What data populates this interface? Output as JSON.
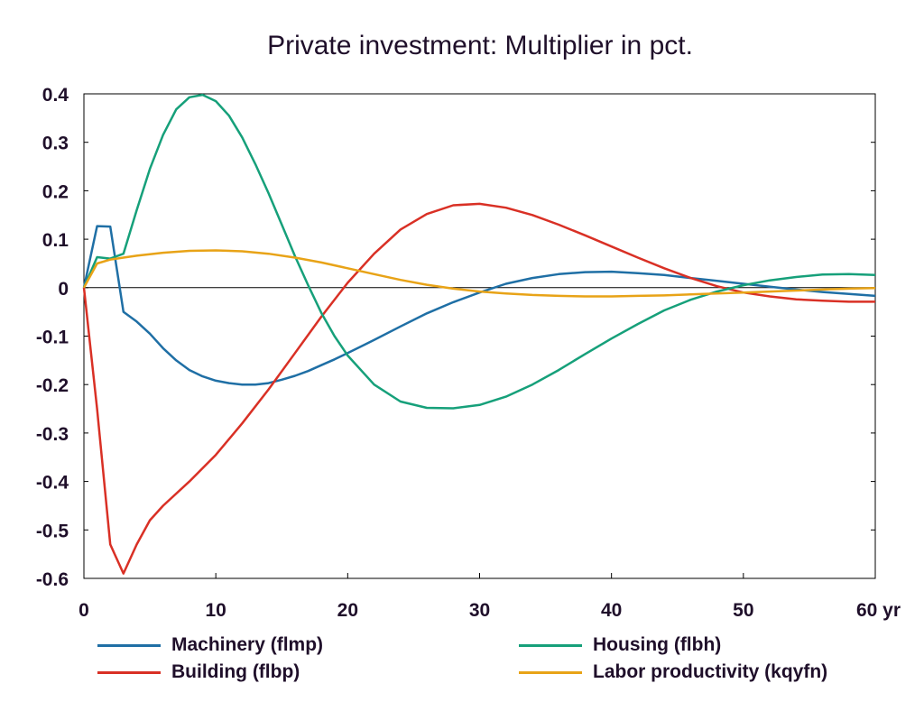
{
  "chart_data": {
    "type": "line",
    "title": "Private investment: Multiplier in pct.",
    "xlabel": "",
    "ylabel": "",
    "xlim": [
      0,
      60
    ],
    "ylim": [
      -0.6,
      0.4
    ],
    "x_ticks": [
      "0",
      "10",
      "20",
      "30",
      "40",
      "50",
      "60 yr"
    ],
    "x_tick_values": [
      0,
      10,
      20,
      30,
      40,
      50,
      60
    ],
    "y_ticks": [
      "0.4",
      "0.3",
      "0.2",
      "0.1",
      "0",
      "-0.1",
      "-0.2",
      "-0.3",
      "-0.4",
      "-0.5",
      "-0.6"
    ],
    "y_tick_values": [
      0.4,
      0.3,
      0.2,
      0.1,
      0,
      -0.1,
      -0.2,
      -0.3,
      -0.4,
      -0.5,
      -0.6
    ],
    "zero_line": true,
    "grid": false,
    "legend_position": "bottom",
    "series": [
      {
        "name": "Machinery (flmp)",
        "color": "#1f6fa5",
        "x": [
          0,
          1,
          2,
          3,
          4,
          5,
          6,
          7,
          8,
          9,
          10,
          11,
          12,
          13,
          14,
          15,
          16,
          17,
          18,
          19,
          20,
          22,
          24,
          26,
          28,
          30,
          32,
          34,
          36,
          38,
          40,
          42,
          44,
          46,
          48,
          50,
          52,
          54,
          56,
          58,
          60
        ],
        "values": [
          0,
          0.127,
          0.126,
          -0.05,
          -0.07,
          -0.095,
          -0.125,
          -0.15,
          -0.17,
          -0.183,
          -0.192,
          -0.197,
          -0.2,
          -0.2,
          -0.197,
          -0.19,
          -0.182,
          -0.172,
          -0.16,
          -0.148,
          -0.135,
          -0.108,
          -0.08,
          -0.053,
          -0.03,
          -0.01,
          0.008,
          0.02,
          0.028,
          0.032,
          0.033,
          0.03,
          0.026,
          0.02,
          0.014,
          0.008,
          0.002,
          -0.004,
          -0.009,
          -0.013,
          -0.017
        ]
      },
      {
        "name": "Building (flbp)",
        "color": "#d93025",
        "x": [
          0,
          1,
          2,
          3,
          4,
          5,
          6,
          8,
          10,
          12,
          14,
          16,
          18,
          20,
          22,
          24,
          26,
          28,
          30,
          32,
          34,
          36,
          38,
          40,
          42,
          44,
          46,
          48,
          50,
          52,
          54,
          56,
          58,
          60
        ],
        "values": [
          0,
          -0.25,
          -0.53,
          -0.59,
          -0.53,
          -0.48,
          -0.45,
          -0.4,
          -0.345,
          -0.28,
          -0.21,
          -0.135,
          -0.06,
          0.01,
          0.07,
          0.12,
          0.152,
          0.17,
          0.173,
          0.165,
          0.15,
          0.13,
          0.108,
          0.085,
          0.062,
          0.04,
          0.02,
          0.003,
          -0.01,
          -0.018,
          -0.024,
          -0.027,
          -0.029,
          -0.029
        ]
      },
      {
        "name": "Housing (flbh)",
        "color": "#16a07a",
        "x": [
          0,
          1,
          2,
          3,
          4,
          5,
          6,
          7,
          8,
          9,
          10,
          11,
          12,
          13,
          14,
          15,
          16,
          17,
          18,
          19,
          20,
          22,
          24,
          26,
          28,
          30,
          32,
          34,
          36,
          38,
          40,
          42,
          44,
          46,
          48,
          50,
          52,
          54,
          56,
          58,
          60
        ],
        "values": [
          0,
          0.063,
          0.06,
          0.07,
          0.16,
          0.245,
          0.315,
          0.368,
          0.393,
          0.398,
          0.385,
          0.355,
          0.31,
          0.255,
          0.195,
          0.13,
          0.065,
          0.005,
          -0.052,
          -0.1,
          -0.14,
          -0.2,
          -0.235,
          -0.248,
          -0.249,
          -0.242,
          -0.225,
          -0.2,
          -0.17,
          -0.137,
          -0.105,
          -0.075,
          -0.047,
          -0.025,
          -0.008,
          0.005,
          0.015,
          0.022,
          0.027,
          0.028,
          0.026
        ]
      },
      {
        "name": "Labor productivity (kqyfn)",
        "color": "#e8a317",
        "x": [
          0,
          1,
          2,
          3,
          4,
          6,
          8,
          10,
          12,
          14,
          16,
          18,
          20,
          22,
          24,
          26,
          28,
          30,
          32,
          34,
          36,
          38,
          40,
          42,
          44,
          46,
          48,
          50,
          52,
          54,
          56,
          58,
          60
        ],
        "values": [
          0,
          0.05,
          0.058,
          0.062,
          0.066,
          0.072,
          0.076,
          0.077,
          0.075,
          0.07,
          0.062,
          0.052,
          0.04,
          0.028,
          0.016,
          0.006,
          -0.002,
          -0.008,
          -0.012,
          -0.015,
          -0.017,
          -0.018,
          -0.018,
          -0.017,
          -0.016,
          -0.014,
          -0.012,
          -0.01,
          -0.008,
          -0.006,
          -0.004,
          -0.002,
          -0.001
        ]
      }
    ]
  }
}
